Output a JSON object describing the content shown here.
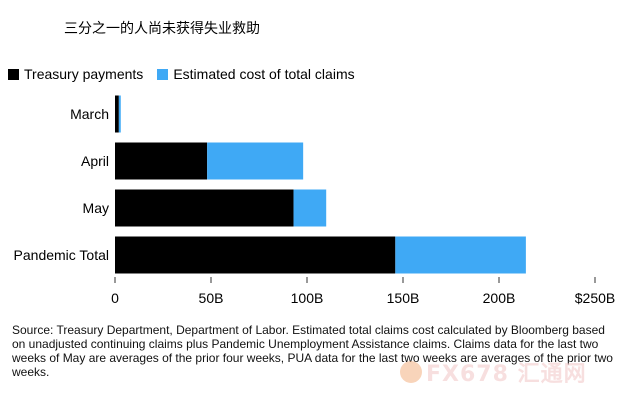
{
  "chart_data": {
    "type": "bar",
    "orientation": "horizontal",
    "stacked": true,
    "title": "三分之一的人尚未获得失业救助",
    "categories": [
      "March",
      "April",
      "May",
      "Pandemic Total"
    ],
    "series": [
      {
        "name": "Treasury payments",
        "color": "#000000",
        "values": [
          2,
          48,
          93,
          146
        ]
      },
      {
        "name": "Estimated cost of total claims",
        "color": "#3fa9f5",
        "values": [
          1,
          50,
          17,
          68
        ]
      }
    ],
    "xlim": [
      0,
      250
    ],
    "xticks": [
      "0",
      "50B",
      "100B",
      "150B",
      "200B",
      "$250B"
    ],
    "legend_position": "top-left",
    "grid": false
  },
  "source": "Source: Treasury Department, Department of Labor. Estimated total claims cost calculated by Bloomberg based on unadjusted continuing claims plus Pandemic Unemployment Assistance claims. Claims data for the last two weeks of May are averages of the prior four weeks, PUA data for the last two weeks are averages of the prior two weeks.",
  "watermark": "FX678 汇通网",
  "colors": {
    "treasury": "#000000",
    "claims": "#3fa9f5"
  }
}
